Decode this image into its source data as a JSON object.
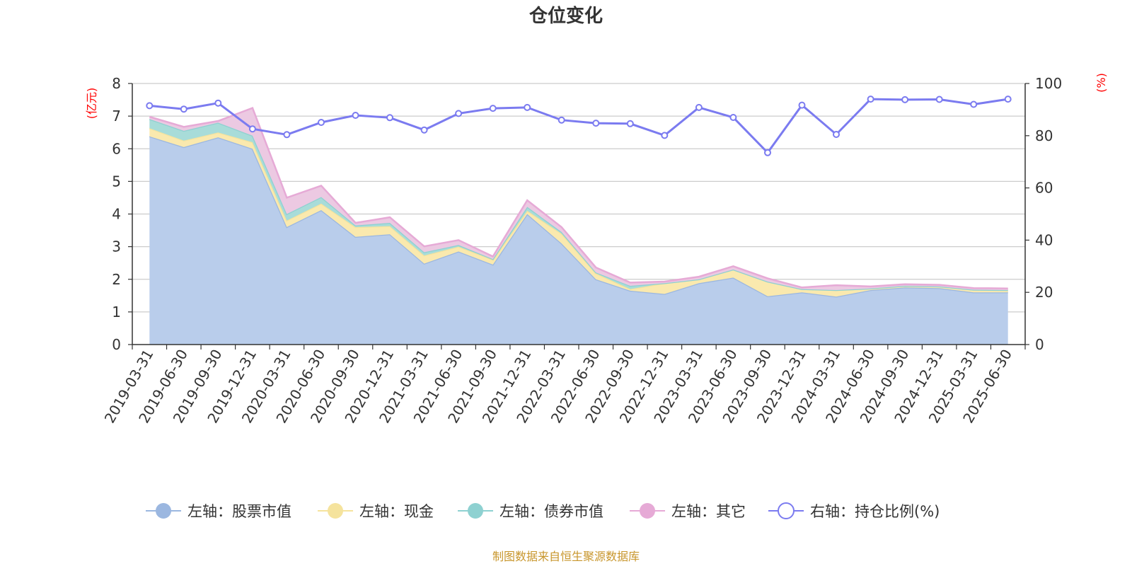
{
  "chart_data": {
    "type": "area",
    "title": "仓位变化",
    "left_unit": "(亿元)",
    "right_unit": "(%)",
    "source": "制图数据来自恒生聚源数据库",
    "categories": [
      "2019-03-31",
      "2019-06-30",
      "2019-09-30",
      "2019-12-31",
      "2020-03-31",
      "2020-06-30",
      "2020-09-30",
      "2020-12-31",
      "2021-03-31",
      "2021-06-30",
      "2021-09-30",
      "2021-12-31",
      "2022-03-31",
      "2022-06-30",
      "2022-09-30",
      "2022-12-31",
      "2023-03-31",
      "2023-06-30",
      "2023-09-30",
      "2023-12-31",
      "2024-03-31",
      "2024-06-30",
      "2024-09-30",
      "2024-12-31",
      "2025-03-31",
      "2025-06-30"
    ],
    "left_axis": {
      "min": 0,
      "max": 8,
      "ticks": [
        "0",
        "1",
        "2",
        "3",
        "4",
        "5",
        "6",
        "7",
        "8"
      ]
    },
    "right_axis": {
      "min": 0,
      "max": 100,
      "ticks": [
        "0",
        "20",
        "40",
        "60",
        "80",
        "100"
      ]
    },
    "grid": true,
    "legend_position": "bottom",
    "series": [
      {
        "name": "左轴：股票市值",
        "axis": "left",
        "stack": true,
        "color": "#9bb7e0",
        "fill": "#b9cdeb",
        "values": [
          6.38,
          6.05,
          6.35,
          6.0,
          3.6,
          4.12,
          3.3,
          3.38,
          2.48,
          2.85,
          2.45,
          4.0,
          3.1,
          2.0,
          1.65,
          1.55,
          1.88,
          2.05,
          1.48,
          1.6,
          1.47,
          1.67,
          1.75,
          1.73,
          1.6,
          1.6
        ]
      },
      {
        "name": "左轴：现金",
        "axis": "left",
        "stack": true,
        "color": "#f5e39d",
        "fill": "#fae9ae",
        "values": [
          0.25,
          0.2,
          0.15,
          0.2,
          0.2,
          0.2,
          0.3,
          0.25,
          0.25,
          0.15,
          0.15,
          0.1,
          0.3,
          0.18,
          0.05,
          0.33,
          0.12,
          0.25,
          0.45,
          0.1,
          0.2,
          0.05,
          0.05,
          0.05,
          0.08,
          0.07
        ]
      },
      {
        "name": "左轴：债券市值",
        "axis": "left",
        "stack": true,
        "color": "#8ed1d1",
        "fill": "#a8dcd9",
        "values": [
          0.28,
          0.3,
          0.3,
          0.2,
          0.2,
          0.2,
          0.05,
          0.1,
          0.1,
          0.05,
          0.02,
          0.12,
          0.05,
          0.03,
          0.1,
          0,
          0,
          0,
          0,
          0,
          0,
          0,
          0,
          0,
          0,
          0
        ]
      },
      {
        "name": "左轴：其它",
        "axis": "left",
        "stack": true,
        "color": "#e6aad6",
        "fill": "#ecc9e2",
        "values": [
          0.07,
          0.12,
          0.05,
          0.85,
          0.5,
          0.35,
          0.08,
          0.17,
          0.18,
          0.15,
          0.08,
          0.2,
          0.15,
          0.15,
          0.1,
          0.05,
          0.08,
          0.1,
          0.1,
          0.05,
          0.15,
          0.06,
          0.05,
          0.05,
          0.05,
          0.05
        ]
      },
      {
        "name": "右轴：持仓比例(%)",
        "axis": "right",
        "stack": false,
        "color": "#7b7bf0",
        "values": [
          91.5,
          90.2,
          92.5,
          82.6,
          80.4,
          85.1,
          87.8,
          86.9,
          82.2,
          88.5,
          90.5,
          90.8,
          86.0,
          84.8,
          84.6,
          80.1,
          90.8,
          87.0,
          73.5,
          91.7,
          80.5,
          94.0,
          93.8,
          93.9,
          92.0,
          94.0
        ]
      }
    ]
  }
}
